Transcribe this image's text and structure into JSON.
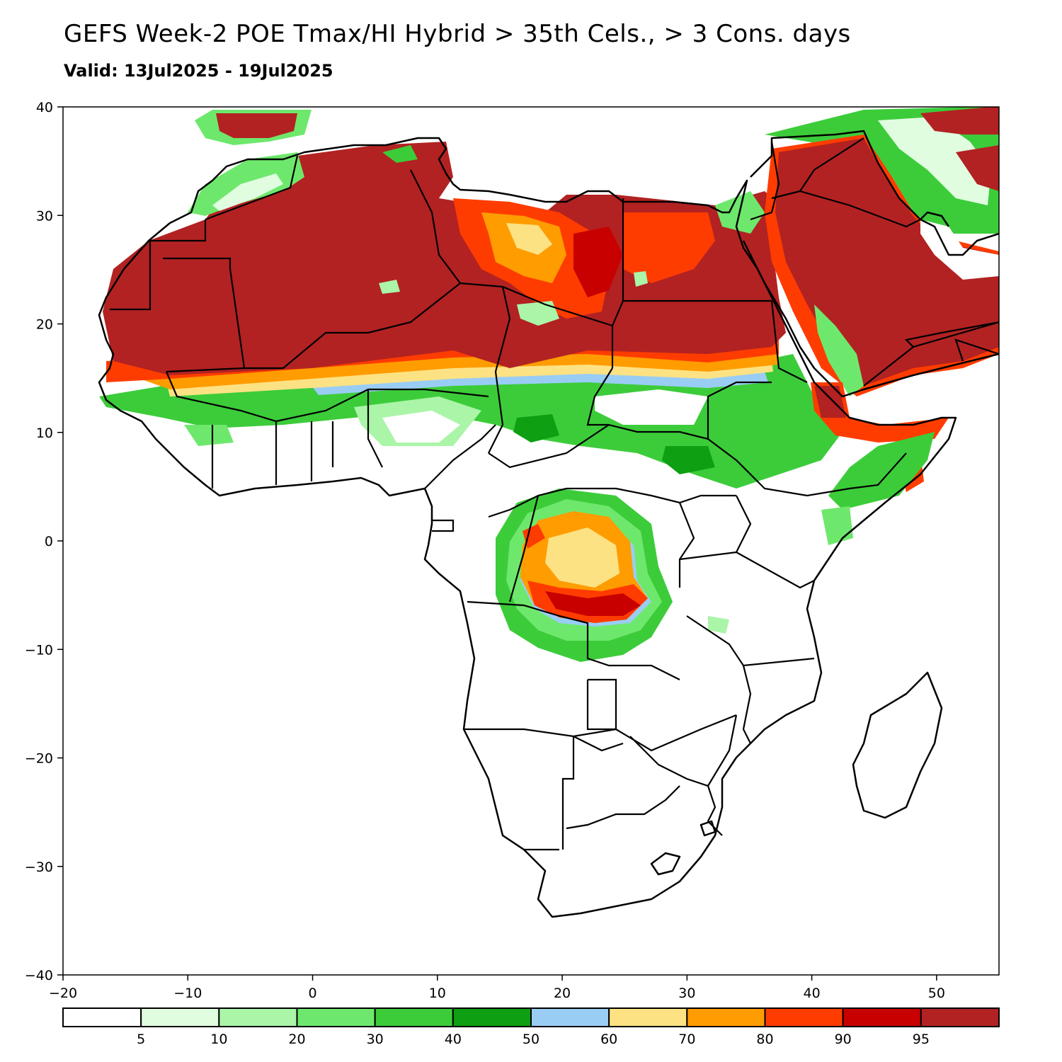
{
  "title": "GEFS Week-2 POE Tmax/HI Hybrid > 35th Cels., > 3 Cons. days",
  "subtitle": "Valid: 13Jul2025 - 19Jul2025",
  "axes": {
    "lon_range": [
      -20,
      55
    ],
    "lat_range": [
      -40,
      40
    ],
    "x_ticks": [
      {
        "value": -20,
        "label": "−20"
      },
      {
        "value": -10,
        "label": "−10"
      },
      {
        "value": 0,
        "label": "0"
      },
      {
        "value": 10,
        "label": "10"
      },
      {
        "value": 20,
        "label": "20"
      },
      {
        "value": 30,
        "label": "30"
      },
      {
        "value": 40,
        "label": "40"
      },
      {
        "value": 50,
        "label": "50"
      }
    ],
    "y_ticks": [
      {
        "value": 40,
        "label": "40"
      },
      {
        "value": 30,
        "label": "30"
      },
      {
        "value": 20,
        "label": "20"
      },
      {
        "value": 10,
        "label": "10"
      },
      {
        "value": 0,
        "label": "0"
      },
      {
        "value": -10,
        "label": "−10"
      },
      {
        "value": -20,
        "label": "−20"
      },
      {
        "value": -30,
        "label": "−30"
      },
      {
        "value": -40,
        "label": "−40"
      }
    ]
  },
  "colorbar": {
    "colors": [
      "#ffffff",
      "#e0fde0",
      "#aaf5a8",
      "#6ee86c",
      "#3ccc3a",
      "#0e9f12",
      "#9acdf4",
      "#fde283",
      "#ff9c00",
      "#ff3c00",
      "#c80000",
      "#b22222"
    ],
    "labels": [
      "5",
      "10",
      "20",
      "30",
      "40",
      "50",
      "60",
      "70",
      "80",
      "90",
      "95"
    ]
  },
  "legend_colors": {
    "very_high": "#b22222",
    "high": "#c80000",
    "orange_red": "#ff3c00",
    "orange": "#ff9c00",
    "yellow": "#fde283",
    "blue": "#9acdf4",
    "dark_green": "#0e9f12",
    "green": "#3ccc3a",
    "light_green": "#6ee86c",
    "pale_green": "#aaf5a8",
    "faint_green": "#e0fde0"
  }
}
